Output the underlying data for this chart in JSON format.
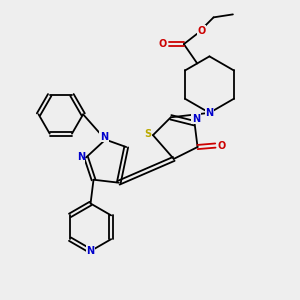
{
  "bg_color": "#eeeeee",
  "atom_colors": {
    "C": "#000000",
    "N": "#0000cc",
    "O": "#cc0000",
    "S": "#bbaa00"
  },
  "lw": 1.3,
  "fs": 7.0
}
